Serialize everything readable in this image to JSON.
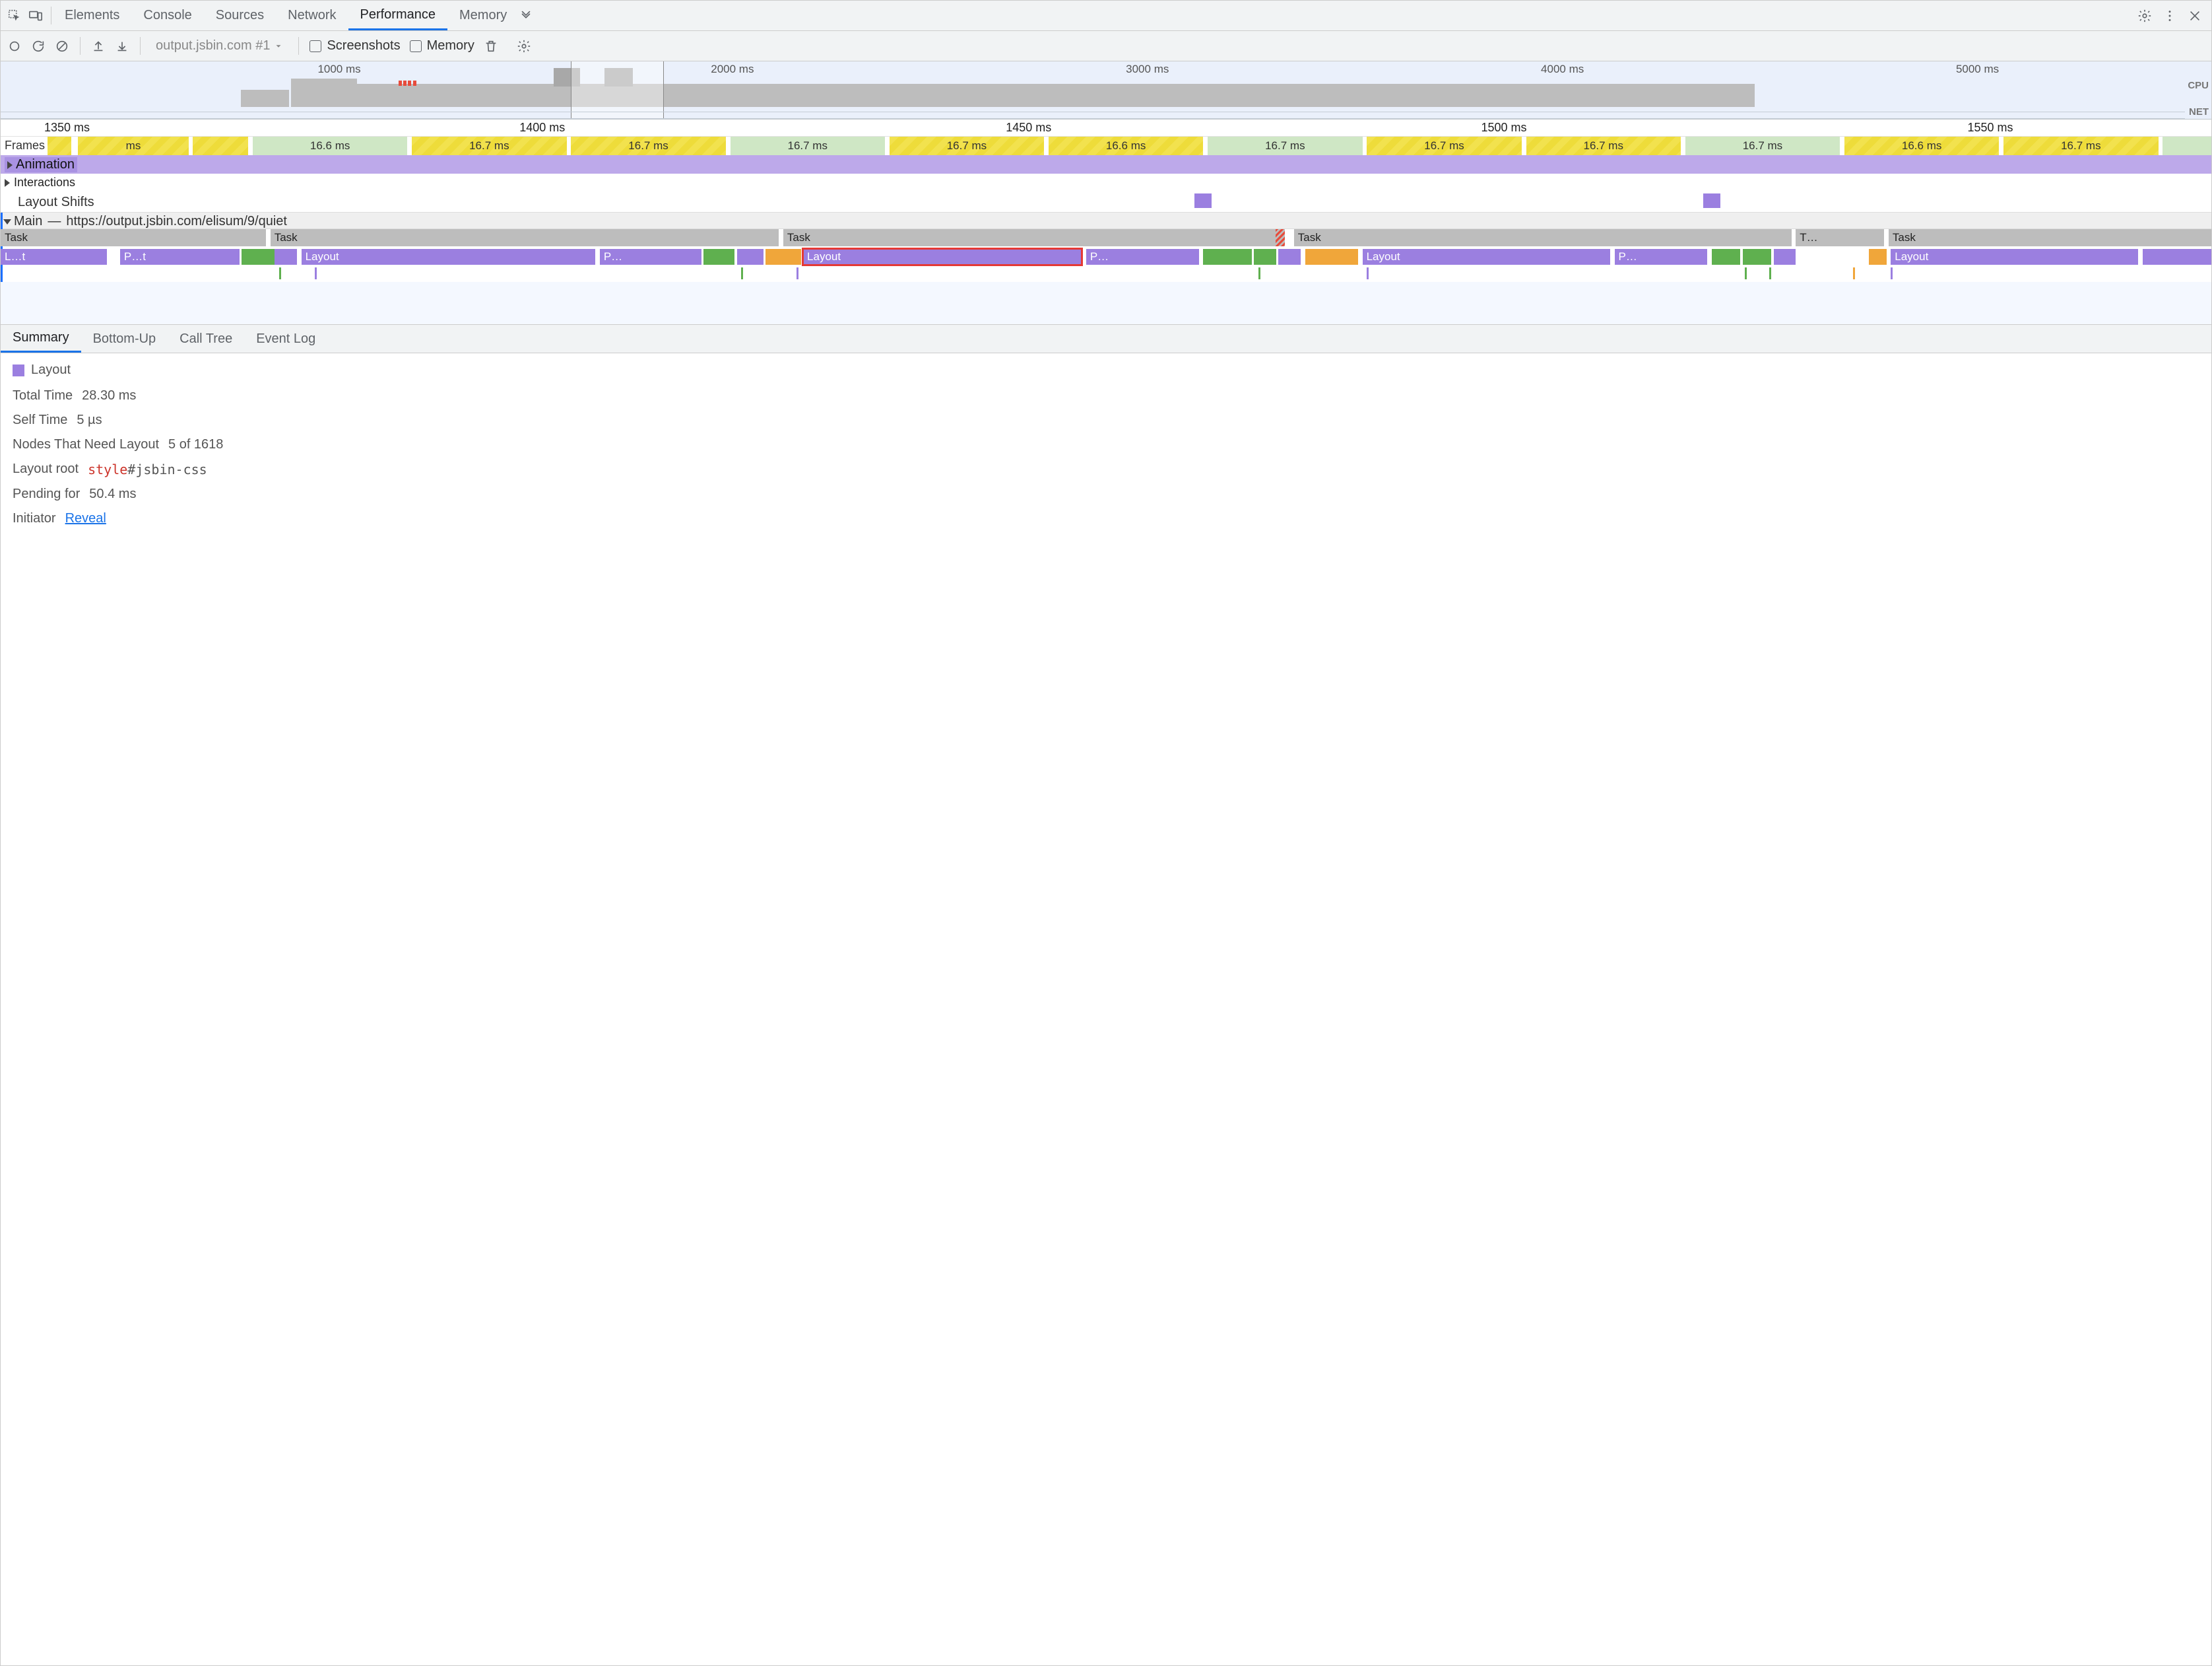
{
  "topTabs": {
    "items": [
      "Elements",
      "Console",
      "Sources",
      "Network",
      "Performance",
      "Memory"
    ],
    "activeIndex": 4
  },
  "toolbar": {
    "dropdown": "output.jsbin.com #1",
    "screenshots": {
      "label": "Screenshots",
      "checked": false
    },
    "memory": {
      "label": "Memory",
      "checked": false
    }
  },
  "overview": {
    "sideLabels": {
      "cpu": "CPU",
      "net": "NET"
    },
    "ticks": [
      {
        "pct": 15.5,
        "label": "1000 ms"
      },
      {
        "pct": 33.5,
        "label": "2000 ms"
      },
      {
        "pct": 52.5,
        "label": "3000 ms"
      },
      {
        "pct": 71.5,
        "label": "4000 ms"
      },
      {
        "pct": 90.5,
        "label": "5000 ms"
      }
    ],
    "selection": {
      "leftPct": 25.8,
      "widthPct": 4.2
    },
    "cpuBlocks": [
      {
        "leftPct": 11.0,
        "widthPct": 2.2,
        "heightPct": 55
      },
      {
        "leftPct": 13.3,
        "widthPct": 3.0,
        "heightPct": 90
      },
      {
        "leftPct": 16.3,
        "widthPct": 64.0,
        "heightPct": 72
      }
    ],
    "longTasks": [
      {
        "leftPct": 25.0,
        "widthPct": 1.2
      },
      {
        "leftPct": 27.3,
        "widthPct": 1.3
      }
    ],
    "redBars": {
      "leftPct": 18.0,
      "positions": [
        0,
        0.6,
        1.2,
        2.3
      ]
    }
  },
  "flame": {
    "ruler": [
      {
        "pct": 3.0,
        "label": "1350 ms"
      },
      {
        "pct": 24.5,
        "label": "1400 ms"
      },
      {
        "pct": 46.5,
        "label": "1450 ms"
      },
      {
        "pct": 68.0,
        "label": "1500 ms"
      },
      {
        "pct": 90.0,
        "label": "1550 ms"
      }
    ],
    "framesLabel": "Frames",
    "frames": [
      {
        "l": 0,
        "w": 3.2,
        "c": "yellow",
        "t": ""
      },
      {
        "l": 3.5,
        "w": 5.0,
        "c": "yellow",
        "t": "ms"
      },
      {
        "l": 8.7,
        "w": 2.5,
        "c": "yellow",
        "t": ""
      },
      {
        "l": 11.4,
        "w": 7.0,
        "c": "green",
        "t": "16.6 ms"
      },
      {
        "l": 18.6,
        "w": 7.0,
        "c": "yellow",
        "t": "16.7 ms"
      },
      {
        "l": 25.8,
        "w": 7.0,
        "c": "yellow",
        "t": "16.7 ms"
      },
      {
        "l": 33.0,
        "w": 7.0,
        "c": "green",
        "t": "16.7 ms"
      },
      {
        "l": 40.2,
        "w": 7.0,
        "c": "yellow",
        "t": "16.7 ms"
      },
      {
        "l": 47.4,
        "w": 7.0,
        "c": "yellow",
        "t": "16.6 ms"
      },
      {
        "l": 54.6,
        "w": 7.0,
        "c": "green",
        "t": "16.7 ms"
      },
      {
        "l": 61.8,
        "w": 7.0,
        "c": "yellow",
        "t": "16.7 ms"
      },
      {
        "l": 69.0,
        "w": 7.0,
        "c": "yellow",
        "t": "16.7 ms"
      },
      {
        "l": 76.2,
        "w": 7.0,
        "c": "green",
        "t": "16.7 ms"
      },
      {
        "l": 83.4,
        "w": 7.0,
        "c": "yellow",
        "t": "16.6 ms"
      },
      {
        "l": 90.6,
        "w": 7.0,
        "c": "yellow",
        "t": "16.7 ms"
      },
      {
        "l": 97.8,
        "w": 2.2,
        "c": "green",
        "t": ""
      }
    ],
    "animationLabel": "Animation",
    "interactionsLabel": "Interactions",
    "layoutShiftsLabel": "Layout Shifts",
    "layoutShiftBlocks": [
      {
        "pct": 54.0
      },
      {
        "pct": 77.0
      }
    ],
    "mainLabel": "Main",
    "mainSep": "—",
    "mainUrl": "https://output.jsbin.com/elisum/9/quiet",
    "taskRow": [
      {
        "l": 0,
        "w": 12.0,
        "t": "Task",
        "hash": false
      },
      {
        "l": 12.2,
        "w": 23.0,
        "t": "Task",
        "hash": false
      },
      {
        "l": 35.4,
        "w": 22.7,
        "t": "Task",
        "hash": true
      },
      {
        "l": 58.5,
        "w": 22.5,
        "t": "Task",
        "hash": false
      },
      {
        "l": 81.2,
        "w": 4.0,
        "t": "T…",
        "hash": false
      },
      {
        "l": 85.4,
        "w": 14.6,
        "t": "Task",
        "hash": false
      }
    ],
    "flameRow": [
      {
        "l": 0.0,
        "w": 4.8,
        "c": "purple",
        "t": "L…t"
      },
      {
        "l": 5.4,
        "w": 5.4,
        "c": "purple",
        "t": "P…t"
      },
      {
        "l": 10.9,
        "w": 1.5,
        "c": "green",
        "t": ""
      },
      {
        "l": 12.4,
        "w": 1.0,
        "c": "purple",
        "t": ""
      },
      {
        "l": 13.6,
        "w": 13.3,
        "c": "purple",
        "t": "Layout"
      },
      {
        "l": 27.1,
        "w": 4.6,
        "c": "purple",
        "t": "P…"
      },
      {
        "l": 31.8,
        "w": 1.4,
        "c": "green",
        "t": ""
      },
      {
        "l": 33.3,
        "w": 1.2,
        "c": "purple",
        "t": ""
      },
      {
        "l": 34.6,
        "w": 1.6,
        "c": "orange",
        "t": ""
      },
      {
        "l": 36.3,
        "w": 12.6,
        "c": "purple",
        "t": "Layout",
        "hl": true
      },
      {
        "l": 49.1,
        "w": 5.1,
        "c": "purple",
        "t": "P…"
      },
      {
        "l": 54.4,
        "w": 2.2,
        "c": "green",
        "t": ""
      },
      {
        "l": 56.7,
        "w": 1.0,
        "c": "green",
        "t": ""
      },
      {
        "l": 57.8,
        "w": 1.0,
        "c": "purple",
        "t": ""
      },
      {
        "l": 59.0,
        "w": 2.4,
        "c": "orange",
        "t": ""
      },
      {
        "l": 61.6,
        "w": 11.2,
        "c": "purple",
        "t": "Layout"
      },
      {
        "l": 73.0,
        "w": 4.2,
        "c": "purple",
        "t": "P…"
      },
      {
        "l": 77.4,
        "w": 1.3,
        "c": "green",
        "t": ""
      },
      {
        "l": 78.8,
        "w": 1.3,
        "c": "green",
        "t": ""
      },
      {
        "l": 80.2,
        "w": 1.0,
        "c": "purple",
        "t": ""
      },
      {
        "l": 84.5,
        "w": 0.8,
        "c": "orange",
        "t": ""
      },
      {
        "l": 85.5,
        "w": 11.2,
        "c": "purple",
        "t": "Layout"
      },
      {
        "l": 96.9,
        "w": 3.1,
        "c": "purple",
        "t": ""
      }
    ],
    "thinRow": [
      {
        "l": 12.6,
        "c": "g"
      },
      {
        "l": 14.2,
        "c": "p"
      },
      {
        "l": 33.5,
        "c": "g"
      },
      {
        "l": 36.0,
        "c": "p"
      },
      {
        "l": 56.9,
        "c": "g"
      },
      {
        "l": 61.8,
        "c": "p"
      },
      {
        "l": 78.9,
        "c": "g"
      },
      {
        "l": 80.0,
        "c": "g"
      },
      {
        "l": 85.5,
        "c": "p"
      },
      {
        "l": 83.8,
        "c": "o"
      }
    ]
  },
  "detailTabs": {
    "items": [
      "Summary",
      "Bottom-Up",
      "Call Tree",
      "Event Log"
    ],
    "activeIndex": 0
  },
  "summary": {
    "title": "Layout",
    "swatch": "#9b7fe0",
    "rows": {
      "totalTime": {
        "k": "Total Time",
        "v": "28.30 ms"
      },
      "selfTime": {
        "k": "Self Time",
        "v": "5 µs"
      },
      "nodes": {
        "k": "Nodes That Need Layout",
        "v": "5 of 1618"
      },
      "layoutRoot": {
        "k": "Layout root",
        "tag": "style",
        "sel": "#jsbin-css"
      },
      "pending": {
        "k": "Pending for",
        "v": "50.4 ms"
      },
      "initiator": {
        "k": "Initiator",
        "link": "Reveal"
      }
    }
  },
  "colors": {
    "purple": "#9b7fe0",
    "green": "#5fb04f",
    "orange": "#f0a63a",
    "frameYellow": "#f2e24e",
    "frameGreen": "#cfe7c5",
    "taskGrey": "#bdbdbd",
    "highlight": "#e53935",
    "link": "#1a73e8"
  }
}
